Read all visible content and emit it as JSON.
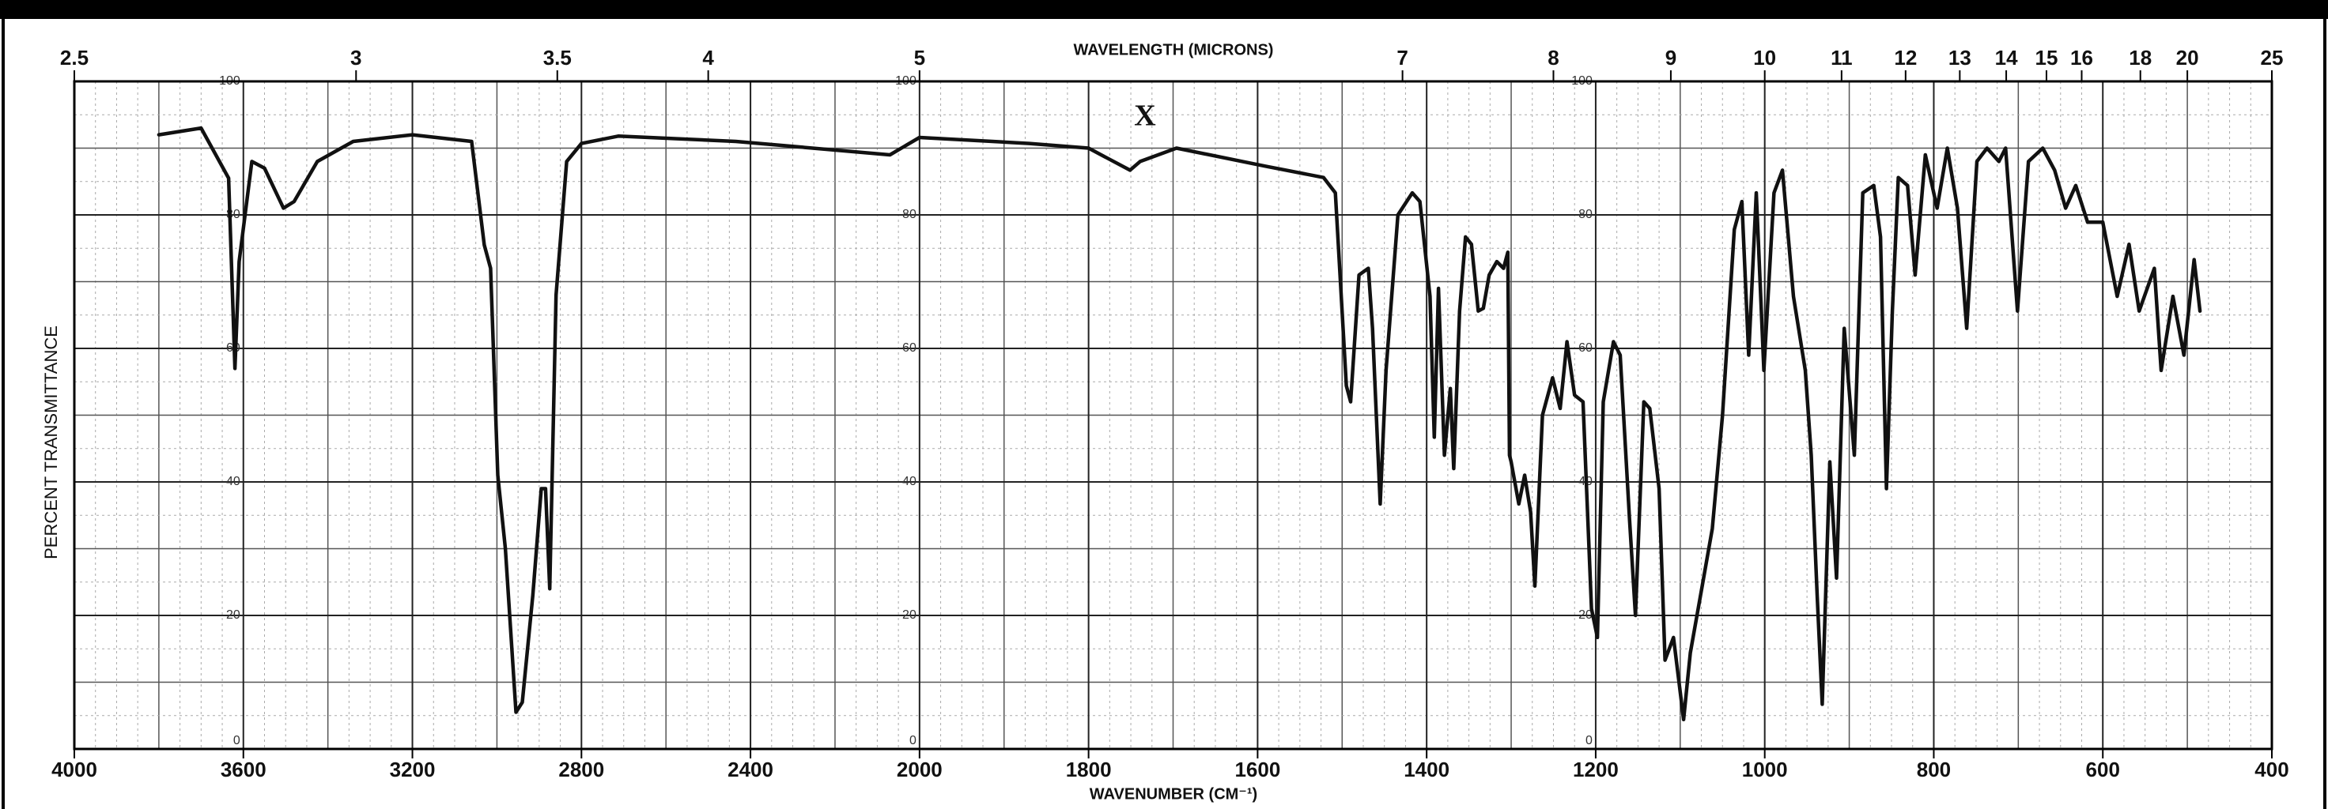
{
  "chart_data": {
    "type": "line",
    "x_label": "WAVENUMBER (CM⁻¹)",
    "x2_label": "WAVELENGTH (MICRONS)",
    "y_label": "PERCENT TRANSMITTANCE",
    "annotation": "X",
    "xlim": [
      4000,
      400
    ],
    "xscale": "piecewise",
    "xticks": [
      4000,
      3600,
      3200,
      2800,
      2400,
      2000,
      1800,
      1600,
      1400,
      1200,
      1000,
      800,
      600,
      400
    ],
    "x2ticks": [
      2.5,
      3,
      3.5,
      4,
      5,
      7,
      8,
      9,
      10,
      11,
      12,
      13,
      14,
      15,
      16,
      18,
      20,
      25
    ],
    "ylim": [
      0,
      100
    ],
    "yticks": [
      0,
      20,
      40,
      60,
      80,
      100
    ],
    "grid": true,
    "color": "#111111",
    "x": [
      3800,
      3700,
      3635,
      3620,
      3610,
      3580,
      3550,
      3505,
      3480,
      3425,
      3340,
      3200,
      3060,
      3030,
      3015,
      2998,
      2980,
      2955,
      2940,
      2915,
      2895,
      2885,
      2875,
      2860,
      2835,
      2800,
      2713,
      2435,
      2070,
      2000,
      1870,
      1800,
      1751,
      1739,
      1696,
      1591,
      1522,
      1508,
      1495,
      1490,
      1480,
      1469,
      1464,
      1455,
      1448,
      1434,
      1417,
      1408,
      1396,
      1391,
      1386,
      1379,
      1372,
      1368,
      1361,
      1354,
      1347,
      1339,
      1333,
      1326,
      1317,
      1309,
      1304,
      1302,
      1300,
      1291,
      1284,
      1277,
      1272,
      1263,
      1251,
      1242,
      1234,
      1225,
      1215,
      1205,
      1198,
      1191,
      1179,
      1171,
      1160,
      1153,
      1143,
      1136,
      1125,
      1118,
      1108,
      1096,
      1088,
      1074,
      1062,
      1050,
      1036,
      1027,
      1019,
      1010,
      1001,
      989,
      979,
      966,
      952,
      945,
      938,
      932,
      923,
      915,
      906,
      894,
      884,
      871,
      863,
      856,
      849,
      842,
      831,
      822,
      810,
      796,
      784,
      772,
      761,
      749,
      737,
      723,
      715,
      701,
      688,
      671,
      657,
      644,
      632,
      618,
      600,
      583,
      569,
      557,
      539,
      531,
      517,
      504,
      492,
      485
    ],
    "values": [
      92,
      93,
      85.5,
      57,
      73,
      88,
      87,
      81,
      82,
      88,
      91,
      92,
      91,
      75.5,
      72,
      41,
      30,
      5.5,
      7,
      23,
      39,
      39,
      24,
      68,
      88,
      90.7,
      91.8,
      91,
      89,
      91.6,
      90.7,
      90,
      86.7,
      88,
      90,
      87.3,
      85.6,
      83.3,
      54.4,
      52,
      71,
      72,
      63,
      36.7,
      56.7,
      80,
      83.3,
      82,
      67.8,
      46.7,
      69,
      44,
      54,
      42,
      65.6,
      76.7,
      75.6,
      65.6,
      66,
      71,
      73,
      72,
      74.4,
      44,
      43,
      36.7,
      41,
      35.5,
      24.4,
      50,
      55.6,
      51,
      61,
      53,
      52,
      21,
      16.7,
      52,
      61,
      59,
      34.4,
      20,
      52,
      51,
      39,
      13.3,
      16.7,
      4.4,
      14.4,
      24.4,
      33,
      50,
      77.8,
      82,
      59,
      83.3,
      56.7,
      83.3,
      86.7,
      67.8,
      56.7,
      44,
      23,
      6.7,
      43,
      25.6,
      63,
      44,
      83.3,
      84.4,
      76.7,
      39,
      65.6,
      85.6,
      84.4,
      71,
      89,
      81,
      90,
      81,
      63,
      88,
      90,
      88,
      90,
      65.6,
      88,
      90,
      86.7,
      81,
      84.4,
      78.9,
      78.9,
      67.8,
      75.6,
      65.6,
      72,
      56.7,
      67.8,
      59,
      73.3,
      65.6
    ]
  }
}
